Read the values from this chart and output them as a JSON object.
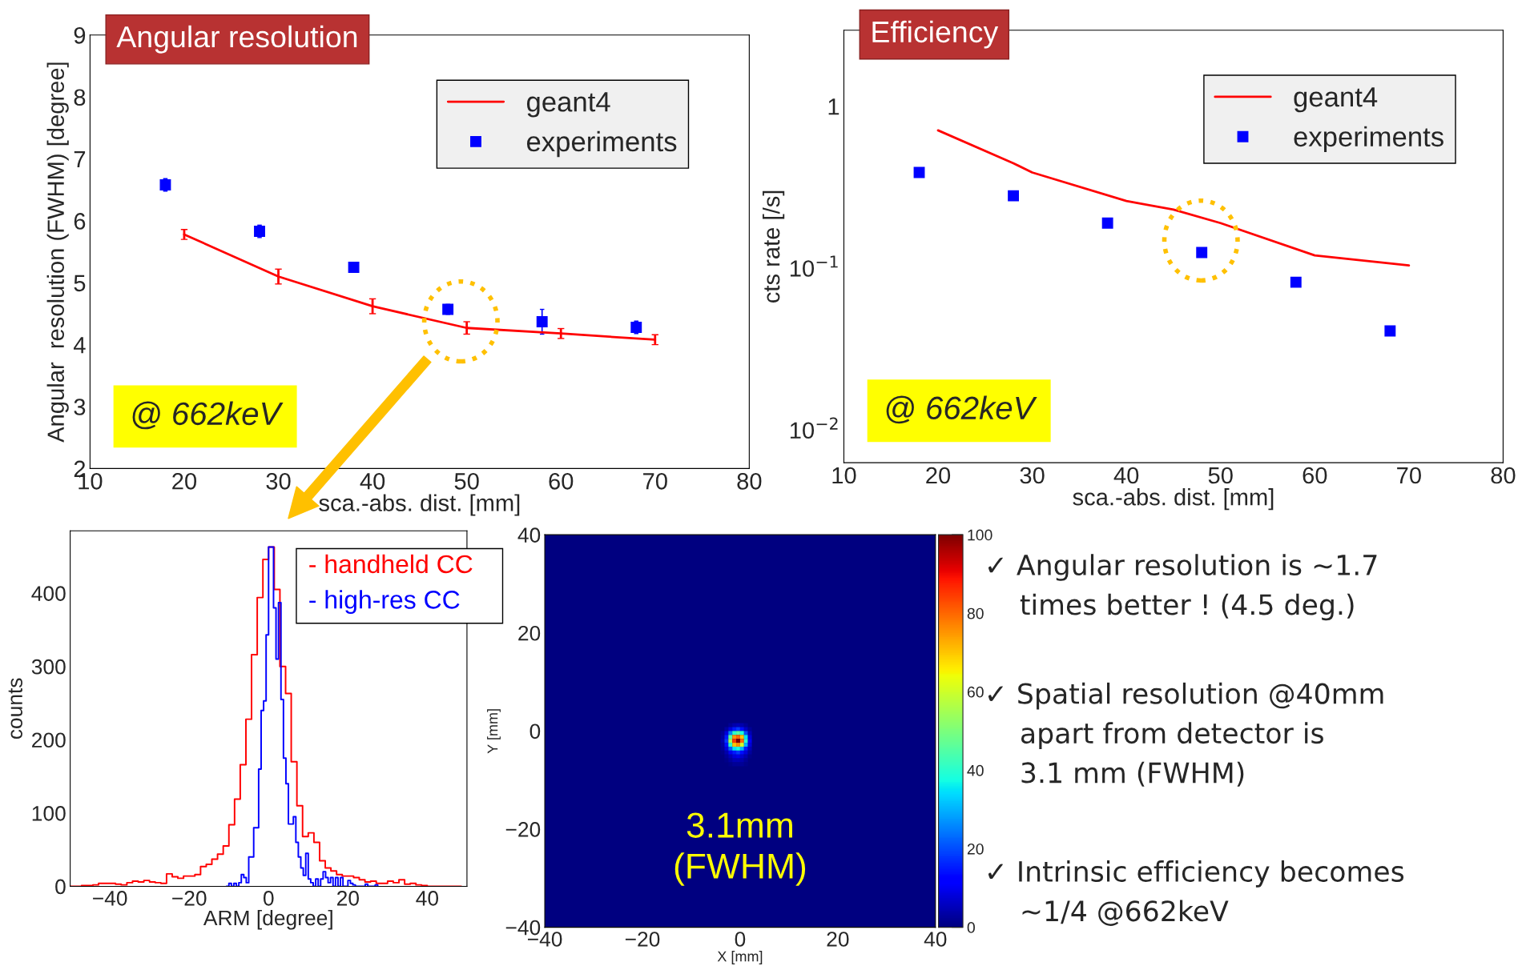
{
  "chart_data": [
    {
      "type": "line",
      "title": "Angular resolution",
      "xlabel": "sca.-abs. dist. [mm]",
      "ylabel": "Angular  resolution (FWHM) [degree]",
      "annotations": [
        "@ 662keV"
      ],
      "xlim": [
        10,
        80
      ],
      "ylim": [
        2,
        9
      ],
      "xticks": [
        10,
        20,
        30,
        40,
        50,
        60,
        70,
        80
      ],
      "yticks": [
        2,
        3,
        4,
        5,
        6,
        7,
        8,
        9
      ],
      "legend": "top right",
      "series": [
        {
          "name": "geant4",
          "type": "line",
          "color": "#ff0000",
          "x": [
            20,
            30,
            40,
            50,
            60,
            70
          ],
          "values": [
            5.78,
            5.1,
            4.62,
            4.27,
            4.18,
            4.08
          ],
          "errors": [
            0.08,
            0.12,
            0.12,
            0.1,
            0.08,
            0.08
          ]
        },
        {
          "name": "experiments",
          "type": "scatter",
          "marker": "square",
          "color": "#0000ff",
          "x": [
            18,
            28,
            38,
            48,
            58,
            68
          ],
          "values": [
            6.58,
            5.83,
            5.25,
            4.57,
            4.37,
            4.28
          ],
          "errors": [
            0.1,
            0.1,
            0.08,
            0.08,
            0.2,
            0.1
          ]
        }
      ]
    },
    {
      "type": "line",
      "title": "Efficiency",
      "xlabel": "sca.-abs. dist. [mm]",
      "ylabel": "cts rate [/s]",
      "annotations": [
        "@ 662keV"
      ],
      "log": "y",
      "xlim": [
        10,
        80
      ],
      "ylim": [
        0.0063,
        2.95
      ],
      "xticks": [
        10,
        20,
        30,
        40,
        50,
        60,
        70,
        80
      ],
      "yticks": [
        {
          "value": 1,
          "label": "1"
        },
        {
          "value": 0.1,
          "label": "10$^{−1}$"
        },
        {
          "value": 0.01,
          "label": "10$^{−2}$"
        }
      ],
      "legend": "top right",
      "series": [
        {
          "name": "geant4",
          "type": "line",
          "color": "#ff0000",
          "x": [
            20,
            28,
            30,
            40,
            45,
            50,
            60,
            70
          ],
          "values": [
            0.71,
            0.445,
            0.39,
            0.26,
            0.23,
            0.19,
            0.12,
            0.104
          ]
        },
        {
          "name": "experiments",
          "type": "scatter",
          "marker": "square",
          "color": "#0000ff",
          "x": [
            18,
            28,
            38,
            48,
            58,
            68
          ],
          "values": [
            0.39,
            0.28,
            0.19,
            0.125,
            0.082,
            0.041
          ]
        }
      ]
    },
    {
      "type": "step",
      "xlabel": "ARM [degree]",
      "ylabel": "counts",
      "xlim": [
        -50,
        50
      ],
      "ylim": [
        0,
        485
      ],
      "xticks": [
        -40,
        -20,
        0,
        20,
        40
      ],
      "yticks": [
        0,
        100,
        200,
        300,
        400
      ],
      "series": [
        {
          "name": "- handheld CC",
          "color": "#ff0000",
          "x": [
            -50,
            -48.57,
            -47.14,
            -45.71,
            -44.29,
            -42.86,
            -41.43,
            -40,
            -38.57,
            -37.14,
            -35.71,
            -34.29,
            -32.86,
            -31.43,
            -30,
            -28.57,
            -27.14,
            -25.71,
            -24.29,
            -22.86,
            -21.43,
            -20,
            -18.57,
            -17.14,
            -15.71,
            -14.29,
            -12.86,
            -11.43,
            -10,
            -8.57,
            -7.14,
            -5.71,
            -4.29,
            -2.86,
            -1.43,
            0,
            1.43,
            2.86,
            4.29,
            5.71,
            7.14,
            8.57,
            10,
            11.43,
            12.86,
            14.29,
            15.71,
            17.14,
            18.57,
            20,
            21.43,
            22.86,
            24.29,
            25.71,
            27.14,
            28.57,
            30,
            31.43,
            32.86,
            34.29,
            35.71,
            37.14,
            38.57,
            40,
            41.43,
            42.86,
            44.29,
            45.71,
            47.14,
            48.57
          ],
          "values": [
            0,
            0,
            1,
            1,
            2,
            4,
            4,
            4,
            3,
            2,
            5,
            7,
            6,
            8,
            6,
            5,
            4,
            17,
            13,
            11,
            14,
            14,
            16,
            27,
            30,
            37,
            44,
            55,
            84,
            119,
            166,
            228,
            316,
            394,
            446,
            463,
            405,
            300,
            263,
            170,
            110,
            68,
            73,
            60,
            35,
            25,
            21,
            16,
            14,
            14,
            12,
            9,
            6,
            7,
            4,
            4,
            7,
            5,
            9,
            3,
            4,
            2,
            1,
            0,
            0,
            0,
            0,
            0,
            0,
            0
          ]
        },
        {
          "name": "- high-res CC",
          "color": "#0000ff",
          "x": [
            -10.625,
            -10,
            -9.375,
            -8.75,
            -8.125,
            -7.5,
            -6.875,
            -6.25,
            -5.625,
            -5,
            -4.375,
            -3.75,
            -3.125,
            -2.5,
            -1.875,
            -1.25,
            -0.625,
            0,
            0.625,
            1.25,
            1.875,
            2.5,
            3.125,
            3.75,
            4.375,
            5,
            5.625,
            6.25,
            6.875,
            7.5,
            8.125,
            8.75,
            9.375,
            10,
            10.625,
            11.25,
            11.875,
            12.5,
            13.125,
            13.75,
            14.375,
            15,
            15.625,
            16.25,
            16.875,
            17.5,
            18.125,
            18.75,
            19.375,
            20,
            20.625,
            21.25,
            21.875,
            22.5,
            23.125,
            23.75,
            24.375,
            25,
            25.625,
            26.25,
            26.875,
            27.5
          ],
          "values": [
            0,
            4,
            0,
            4,
            0,
            5,
            16,
            12,
            5,
            40,
            40,
            80,
            80,
            160,
            240,
            253,
            343,
            463,
            463,
            380,
            310,
            387,
            255,
            175,
            140,
            85,
            85,
            95,
            60,
            40,
            25,
            15,
            45,
            10,
            5,
            0,
            10,
            0,
            10,
            20,
            12,
            5,
            12,
            0,
            12,
            0,
            12,
            0,
            0,
            8,
            4,
            2,
            0,
            0,
            0,
            0,
            3,
            0,
            0,
            0,
            2,
            0
          ]
        }
      ]
    },
    {
      "type": "scatter",
      "xlabel": "X [mm]",
      "ylabel": "Y [mm]",
      "annotations": [
        "3.1mm\n(FWHM)"
      ],
      "xlim": [
        -40,
        40
      ],
      "ylim": [
        -40,
        40
      ],
      "xticks": [
        -40,
        -20,
        0,
        20,
        40
      ],
      "yticks": [
        -40,
        -20,
        0,
        20,
        40
      ],
      "clim": [
        0,
        100
      ],
      "cticks": [
        0,
        20,
        40,
        60,
        80,
        100
      ],
      "series": [
        {
          "marker": "square",
          "x": [
            -2.0,
            -1.2,
            -0.4,
            0.4,
            1.2,
            -2.8,
            -2.0,
            -1.2,
            -0.4,
            0.4,
            1.2,
            2.0,
            -3.6,
            -2.8,
            -2.0,
            -1.2,
            -0.4,
            0.4,
            1.2,
            2.0,
            -3.6,
            -2.8,
            -2.0,
            -1.2,
            -0.4,
            0.4,
            1.2,
            2.0,
            -3.6,
            -2.8,
            -2.0,
            -1.2,
            -0.4,
            0.4,
            1.2,
            2.0,
            -3.6,
            -2.8,
            -2.0,
            -1.2,
            -0.4,
            0.4,
            1.2,
            2.0,
            -3.6,
            -2.8,
            -2.0,
            -1.2,
            -0.4,
            0.4,
            1.2,
            2.0,
            -3.6,
            -2.8,
            -2.0,
            -1.2,
            -0.4,
            0.4,
            1.2,
            2.0,
            -2.8,
            -2.0,
            -1.2,
            -0.4,
            0.4,
            1.2,
            2.0,
            -2.8,
            -2.0,
            -1.2,
            -0.4,
            0.4,
            1.2,
            -2.0,
            -1.2,
            -0.4,
            0.4,
            1.2
          ],
          "values": [
            1.2,
            1.2,
            1.2,
            1.2,
            1.2,
            0.4,
            0.4,
            0.4,
            0.4,
            0.4,
            0.4,
            0.4,
            -0.4,
            -0.4,
            -0.4,
            -0.4,
            -0.4,
            -0.4,
            -0.4,
            -0.4,
            -1.2,
            -1.2,
            -1.2,
            -1.2,
            -1.2,
            -1.2,
            -1.2,
            -1.2,
            -2.0,
            -2.0,
            -2.0,
            -2.0,
            -2.0,
            -2.0,
            -2.0,
            -2.0,
            -2.8,
            -2.8,
            -2.8,
            -2.8,
            -2.8,
            -2.8,
            -2.8,
            -2.8,
            -3.6,
            -3.6,
            -3.6,
            -3.6,
            -3.6,
            -3.6,
            -3.6,
            -3.6,
            -4.4,
            -4.4,
            -4.4,
            -4.4,
            -4.4,
            -4.4,
            -4.4,
            -4.4,
            -5.2,
            -5.2,
            -5.2,
            -5.2,
            -5.2,
            -5.2,
            -5.2,
            -6.0,
            -6.0,
            -6.0,
            -6.0,
            -6.0,
            -6.0,
            -6.8,
            -6.8,
            -6.8,
            -6.8,
            -6.8
          ],
          "cvalues": [
            2,
            4,
            5,
            4,
            2,
            3,
            8,
            15,
            18,
            14,
            6,
            2,
            2,
            8,
            25,
            40,
            45,
            38,
            20,
            5,
            3,
            15,
            45,
            75,
            80,
            70,
            35,
            8,
            4,
            18,
            55,
            85,
            100,
            80,
            40,
            10,
            3,
            14,
            40,
            70,
            75,
            60,
            30,
            8,
            2,
            8,
            22,
            35,
            38,
            30,
            15,
            5,
            1,
            4,
            10,
            15,
            18,
            14,
            8,
            3,
            2,
            5,
            8,
            9,
            7,
            4,
            1,
            1,
            3,
            5,
            5,
            4,
            2,
            1,
            2,
            2,
            2,
            1
          ]
        }
      ]
    },
    {
      "type": "other",
      "annotations": [
        "✓ Angular resolution is ~1.7\n    times better ! (4.5 deg.)",
        "✓ Spatial resolution @40mm\n    apart from detector is\n    3.1 mm (FWHM)",
        "✓ Intrinsic efficiency becomes\n    ~1/4 @662keV"
      ]
    }
  ]
}
